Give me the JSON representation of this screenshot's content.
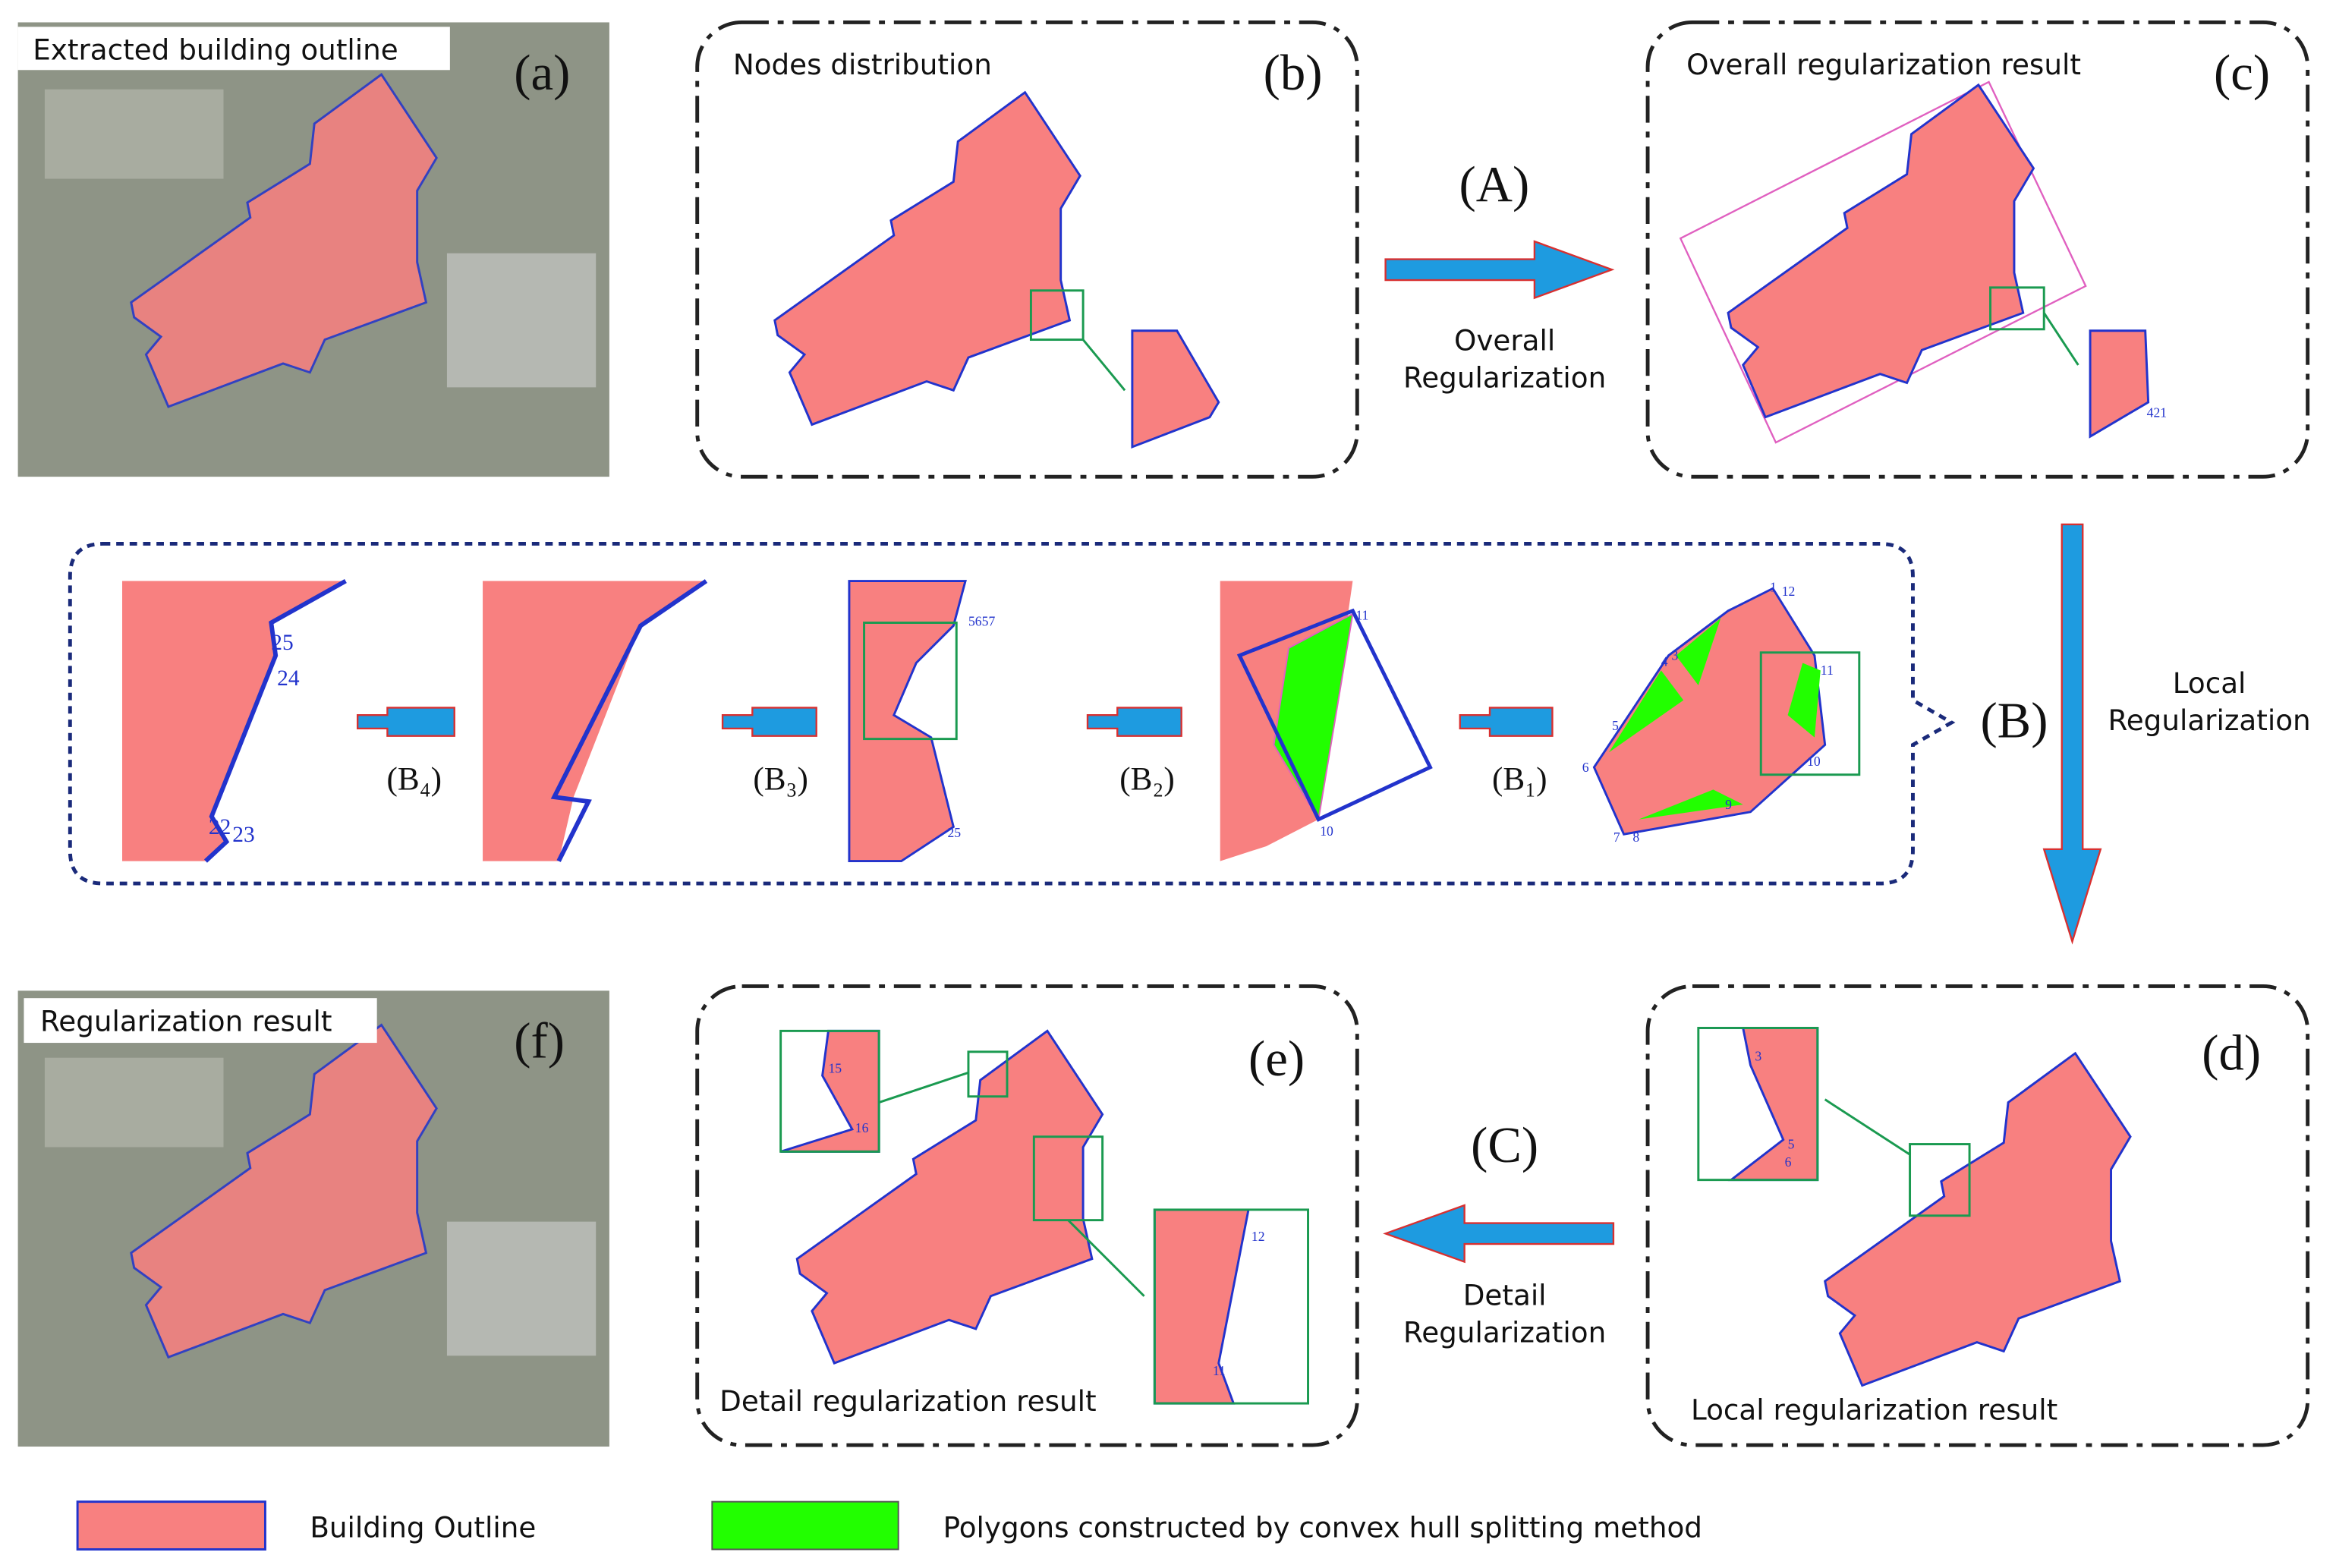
{
  "panels": [
    {
      "letter": "(a)",
      "title": "Extracted building outline"
    },
    {
      "letter": "(b)",
      "title": "Nodes distribution"
    },
    {
      "letter": "(c)",
      "title": "Overall regularization result"
    },
    {
      "letter": "(d)",
      "title": "Local regularization result"
    },
    {
      "letter": "(e)",
      "title": "Detail regularization result"
    },
    {
      "letter": "(f)",
      "title": "Regularization result"
    }
  ],
  "steps": [
    {
      "label": "(A)",
      "text": [
        "Overall",
        "Regularization"
      ]
    },
    {
      "label": "(B)",
      "text": [
        "Local",
        "Regularization"
      ]
    },
    {
      "label": "(C)",
      "text": [
        "Detail",
        "Regularization"
      ]
    }
  ],
  "substeps": [
    "(B₁)",
    "(B₂)",
    "(B₃)",
    "(B₄)"
  ],
  "nodes": [
    "1",
    "12",
    "4",
    "3",
    "5",
    "6",
    "7",
    "8",
    "9",
    "10",
    "11",
    "11",
    "10",
    "5657",
    "25",
    "25",
    "24",
    "22",
    "23",
    "421",
    "3",
    "5",
    "6",
    "15",
    "16",
    "12",
    "11"
  ],
  "legend": [
    "Building Outline",
    "Polygons constructed by convex hull splitting method"
  ]
}
